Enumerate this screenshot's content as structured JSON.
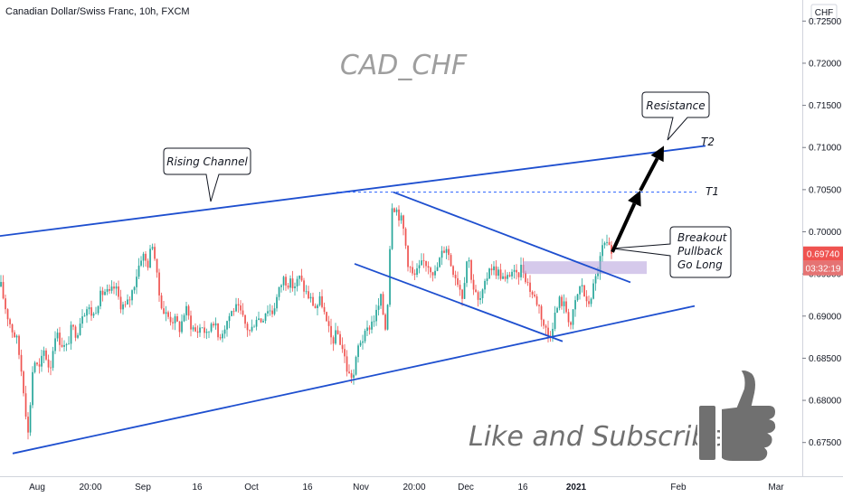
{
  "header": {
    "title": "Canadian Dollar/Swiss Franc, 10h, FXCM"
  },
  "price_axis": {
    "currency": "CHF",
    "ticks": [
      "0.72500",
      "0.72000",
      "0.71500",
      "0.71000",
      "0.70500",
      "0.70000",
      "0.69500",
      "0.69000",
      "0.68500",
      "0.68000",
      "0.67500"
    ],
    "current_price": "0.69740",
    "countdown": "03:32:19",
    "colors": {
      "price_badge": "#ef5350",
      "countdown_badge": "#e57373"
    }
  },
  "time_axis": {
    "labels": [
      "Aug",
      "20:00",
      "Sep",
      "16",
      "Oct",
      "16",
      "Nov",
      "20:00",
      "Dec",
      "16",
      "2021",
      "Feb",
      "Mar"
    ]
  },
  "watermark": "CAD_CHF",
  "call_to_action": "Like and Subscribe!",
  "annotations": {
    "rising_channel": "Rising Channel",
    "resistance": "Resistance",
    "breakout_lines": [
      "Breakout",
      "Pullback",
      "Go Long"
    ]
  },
  "targets": {
    "t1": "T1",
    "t2": "T2"
  },
  "colors": {
    "up_candle": "#26a69a",
    "down_candle": "#ef5350",
    "trendline": "#1e4fcf",
    "target_line": "#2962ff",
    "zone": "#b39ddb"
  },
  "chart_data": {
    "type": "candlestick",
    "instrument": "Canadian Dollar/Swiss Franc",
    "timeframe": "10h",
    "ylim": [
      0.671,
      0.7275
    ],
    "price_levels": {
      "target_T1": 0.7047,
      "target_T2": 0.7102,
      "breakout_zone": [
        0.695,
        0.6965
      ]
    },
    "path_knots": [
      [
        0,
        0.6935
      ],
      [
        6,
        0.6905
      ],
      [
        12,
        0.6885
      ],
      [
        18,
        0.687
      ],
      [
        24,
        0.6825
      ],
      [
        30,
        0.676
      ],
      [
        36,
        0.685
      ],
      [
        42,
        0.6835
      ],
      [
        48,
        0.686
      ],
      [
        54,
        0.6835
      ],
      [
        60,
        0.688
      ],
      [
        66,
        0.687
      ],
      [
        72,
        0.686
      ],
      [
        78,
        0.6885
      ],
      [
        84,
        0.688
      ],
      [
        90,
        0.6905
      ],
      [
        96,
        0.691
      ],
      [
        102,
        0.69
      ],
      [
        108,
        0.692
      ],
      [
        114,
        0.693
      ],
      [
        120,
        0.6925
      ],
      [
        126,
        0.6935
      ],
      [
        132,
        0.6915
      ],
      [
        138,
        0.691
      ],
      [
        144,
        0.6925
      ],
      [
        150,
        0.695
      ],
      [
        156,
        0.6975
      ],
      [
        162,
        0.696
      ],
      [
        168,
        0.699
      ],
      [
        174,
        0.693
      ],
      [
        180,
        0.6905
      ],
      [
        186,
        0.6898
      ],
      [
        192,
        0.6895
      ],
      [
        198,
        0.6885
      ],
      [
        204,
        0.691
      ],
      [
        210,
        0.689
      ],
      [
        216,
        0.688
      ],
      [
        222,
        0.689
      ],
      [
        228,
        0.6875
      ],
      [
        234,
        0.69
      ],
      [
        240,
        0.6875
      ],
      [
        246,
        0.6885
      ],
      [
        252,
        0.69
      ],
      [
        258,
        0.691
      ],
      [
        264,
        0.6905
      ],
      [
        270,
        0.689
      ],
      [
        276,
        0.688
      ],
      [
        282,
        0.69
      ],
      [
        288,
        0.6895
      ],
      [
        294,
        0.691
      ],
      [
        300,
        0.6905
      ],
      [
        306,
        0.6925
      ],
      [
        312,
        0.6945
      ],
      [
        318,
        0.694
      ],
      [
        324,
        0.6935
      ],
      [
        330,
        0.6945
      ],
      [
        336,
        0.693
      ],
      [
        342,
        0.692
      ],
      [
        348,
        0.691
      ],
      [
        354,
        0.692
      ],
      [
        360,
        0.689
      ],
      [
        366,
        0.687
      ],
      [
        372,
        0.688
      ],
      [
        378,
        0.686
      ],
      [
        384,
        0.683
      ],
      [
        390,
        0.683
      ],
      [
        396,
        0.687
      ],
      [
        402,
        0.6875
      ],
      [
        408,
        0.689
      ],
      [
        414,
        0.69
      ],
      [
        420,
        0.692
      ],
      [
        426,
        0.688
      ],
      [
        432,
        0.7035
      ],
      [
        438,
        0.7025
      ],
      [
        444,
        0.701
      ],
      [
        450,
        0.6965
      ],
      [
        456,
        0.6945
      ],
      [
        462,
        0.6955
      ],
      [
        468,
        0.6965
      ],
      [
        474,
        0.696
      ],
      [
        480,
        0.695
      ],
      [
        486,
        0.697
      ],
      [
        492,
        0.6985
      ],
      [
        498,
        0.696
      ],
      [
        504,
        0.6945
      ],
      [
        510,
        0.6925
      ],
      [
        516,
        0.6975
      ],
      [
        522,
        0.6935
      ],
      [
        528,
        0.6915
      ],
      [
        534,
        0.693
      ],
      [
        540,
        0.696
      ],
      [
        546,
        0.6955
      ],
      [
        552,
        0.695
      ],
      [
        558,
        0.694
      ],
      [
        564,
        0.6955
      ],
      [
        570,
        0.6945
      ],
      [
        576,
        0.696
      ],
      [
        582,
        0.694
      ],
      [
        588,
        0.6925
      ],
      [
        594,
        0.6915
      ],
      [
        600,
        0.689
      ],
      [
        606,
        0.6875
      ],
      [
        612,
        0.69
      ],
      [
        618,
        0.692
      ],
      [
        624,
        0.691
      ],
      [
        630,
        0.689
      ],
      [
        636,
        0.692
      ],
      [
        642,
        0.694
      ],
      [
        648,
        0.691
      ],
      [
        654,
        0.693
      ],
      [
        660,
        0.6955
      ],
      [
        666,
        0.6985
      ],
      [
        672,
        0.698
      ],
      [
        675,
        0.6974
      ]
    ],
    "trendlines": [
      {
        "name": "channel_upper",
        "p1": [
          0,
          0.6995
        ],
        "p2": [
          780,
          0.7102
        ]
      },
      {
        "name": "channel_lower",
        "p1": [
          14,
          0.6737
        ],
        "p2": [
          768,
          0.6912
        ]
      },
      {
        "name": "wedge_upper",
        "p1": [
          435,
          0.7047
        ],
        "p2": [
          697,
          0.694
        ]
      },
      {
        "name": "wedge_lower",
        "p1": [
          392,
          0.6962
        ],
        "p2": [
          622,
          0.687
        ]
      }
    ],
    "projection_path": [
      [
        677,
        0.6976
      ],
      [
        708,
        0.7049
      ],
      [
        734,
        0.7102
      ]
    ]
  }
}
